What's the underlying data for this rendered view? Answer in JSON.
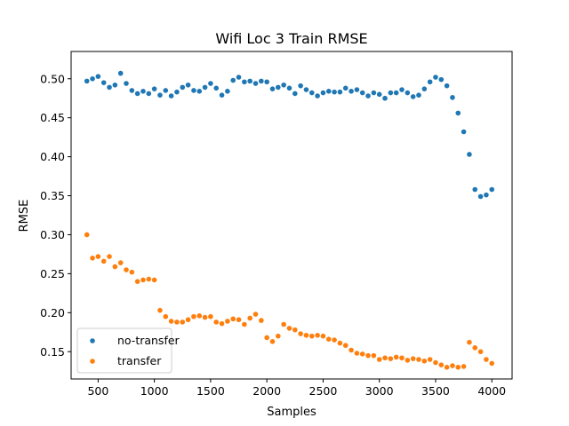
{
  "chart_data": {
    "type": "scatter",
    "title": "Wifi Loc 3 Train RMSE",
    "xlabel": "Samples",
    "ylabel": "RMSE",
    "xlim": [
      260,
      4180
    ],
    "ylim": [
      0.115,
      0.535
    ],
    "grid": false,
    "legend_position": "lower-left",
    "xticks": [
      500,
      1000,
      1500,
      2000,
      2500,
      3000,
      3500,
      4000
    ],
    "yticks": [
      0.15,
      0.2,
      0.25,
      0.3,
      0.35,
      0.4,
      0.45,
      0.5
    ],
    "xtick_labels": [
      "500",
      "1000",
      "1500",
      "2000",
      "2500",
      "3000",
      "3500",
      "4000"
    ],
    "ytick_labels": [
      "0.15",
      "0.20",
      "0.25",
      "0.30",
      "0.35",
      "0.40",
      "0.45",
      "0.50"
    ],
    "series": [
      {
        "name": "no-transfer",
        "color": "#1f77b4",
        "x": [
          400,
          450,
          500,
          550,
          600,
          650,
          700,
          750,
          800,
          850,
          900,
          950,
          1000,
          1050,
          1100,
          1150,
          1200,
          1250,
          1300,
          1350,
          1400,
          1450,
          1500,
          1550,
          1600,
          1650,
          1700,
          1750,
          1800,
          1850,
          1900,
          1950,
          2000,
          2050,
          2100,
          2150,
          2200,
          2250,
          2300,
          2350,
          2400,
          2450,
          2500,
          2550,
          2600,
          2650,
          2700,
          2750,
          2800,
          2850,
          2900,
          2950,
          3000,
          3050,
          3100,
          3150,
          3200,
          3250,
          3300,
          3350,
          3400,
          3450,
          3500,
          3550,
          3600,
          3650,
          3700,
          3750,
          3800,
          3850,
          3900,
          3950,
          4000
        ],
        "y": [
          0.497,
          0.5,
          0.503,
          0.495,
          0.489,
          0.492,
          0.507,
          0.494,
          0.485,
          0.481,
          0.484,
          0.481,
          0.487,
          0.479,
          0.485,
          0.478,
          0.483,
          0.489,
          0.492,
          0.485,
          0.484,
          0.489,
          0.494,
          0.488,
          0.479,
          0.484,
          0.498,
          0.502,
          0.496,
          0.497,
          0.494,
          0.497,
          0.496,
          0.487,
          0.489,
          0.492,
          0.488,
          0.481,
          0.491,
          0.486,
          0.482,
          0.478,
          0.482,
          0.484,
          0.483,
          0.483,
          0.488,
          0.484,
          0.486,
          0.482,
          0.478,
          0.482,
          0.48,
          0.475,
          0.482,
          0.482,
          0.486,
          0.482,
          0.477,
          0.479,
          0.487,
          0.496,
          0.502,
          0.499,
          0.491,
          0.476,
          0.456,
          0.432,
          0.403,
          0.358,
          0.349,
          0.351,
          0.358
        ]
      },
      {
        "name": "transfer",
        "color": "#ff7f0e",
        "x": [
          400,
          450,
          500,
          550,
          600,
          650,
          700,
          750,
          800,
          850,
          900,
          950,
          1000,
          1050,
          1100,
          1150,
          1200,
          1250,
          1300,
          1350,
          1400,
          1450,
          1500,
          1550,
          1600,
          1650,
          1700,
          1750,
          1800,
          1850,
          1900,
          1950,
          2000,
          2050,
          2100,
          2150,
          2200,
          2250,
          2300,
          2350,
          2400,
          2450,
          2500,
          2550,
          2600,
          2650,
          2700,
          2750,
          2800,
          2850,
          2900,
          2950,
          3000,
          3050,
          3100,
          3150,
          3200,
          3250,
          3300,
          3350,
          3400,
          3450,
          3500,
          3550,
          3600,
          3650,
          3700,
          3750,
          3800,
          3850,
          3900,
          3950,
          4000
        ],
        "y": [
          0.3,
          0.27,
          0.272,
          0.266,
          0.272,
          0.259,
          0.264,
          0.255,
          0.252,
          0.24,
          0.242,
          0.243,
          0.242,
          0.203,
          0.195,
          0.189,
          0.188,
          0.188,
          0.191,
          0.195,
          0.196,
          0.194,
          0.195,
          0.188,
          0.186,
          0.189,
          0.192,
          0.191,
          0.185,
          0.193,
          0.198,
          0.19,
          0.168,
          0.163,
          0.17,
          0.185,
          0.18,
          0.178,
          0.173,
          0.171,
          0.17,
          0.171,
          0.17,
          0.166,
          0.165,
          0.161,
          0.158,
          0.152,
          0.148,
          0.147,
          0.145,
          0.145,
          0.14,
          0.142,
          0.141,
          0.143,
          0.142,
          0.139,
          0.141,
          0.14,
          0.138,
          0.14,
          0.136,
          0.133,
          0.13,
          0.132,
          0.13,
          0.131,
          0.162,
          0.155,
          0.15,
          0.14,
          0.135
        ]
      }
    ]
  }
}
